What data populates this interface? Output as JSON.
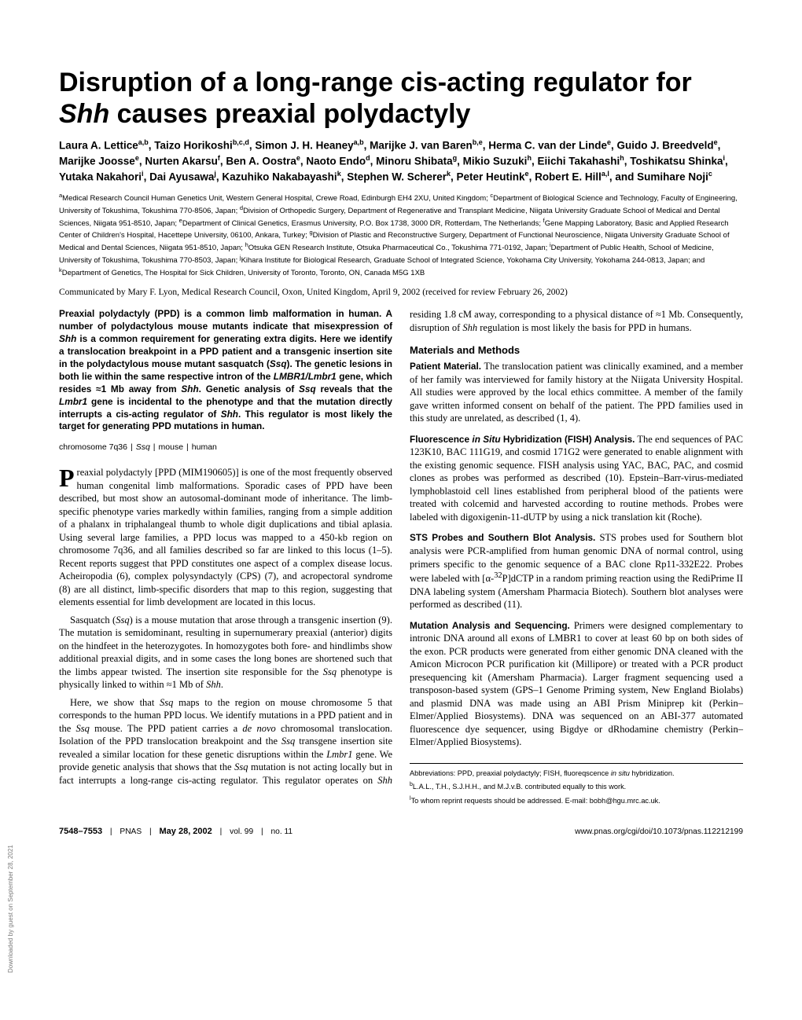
{
  "title": {
    "pre": "Disruption of a long-range cis-acting regulator for ",
    "ital": "Shh",
    "post": " causes preaxial polydactyly"
  },
  "authors_html": "Laura A. Lettice<sup>a,b</sup>, Taizo Horikoshi<sup>b,c,d</sup>, Simon J. H. Heaney<sup>a,b</sup>, Marijke J. van Baren<sup>b,e</sup>, Herma C. van der Linde<sup>e</sup>, Guido J. Breedveld<sup>e</sup>, Marijke Joosse<sup>e</sup>, Nurten Akarsu<sup>f</sup>, Ben A. Oostra<sup>e</sup>, Naoto Endo<sup>d</sup>, Minoru Shibata<sup>g</sup>, Mikio Suzuki<sup>h</sup>, Eiichi Takahashi<sup>h</sup>, Toshikatsu Shinka<sup>i</sup>, Yutaka Nakahori<sup>i</sup>, Dai Ayusawa<sup>j</sup>, Kazuhiko Nakabayashi<sup>k</sup>, Stephen W. Scherer<sup>k</sup>, Peter Heutink<sup>e</sup>, Robert E. Hill<sup>a,l</sup>, and Sumihare Noji<sup>c</sup>",
  "affiliations_html": "<sup>a</sup>Medical Research Council Human Genetics Unit, Western General Hospital, Crewe Road, Edinburgh EH4 2XU, United Kingdom; <sup>c</sup>Department of Biological Science and Technology, Faculty of Engineering, University of Tokushima, Tokushima 770-8506, Japan; <sup>d</sup>Division of Orthopedic Surgery, Department of Regenerative and Transplant Medicine, Niigata University Graduate School of Medical and Dental Sciences, Niigata 951-8510, Japan; <sup>e</sup>Department of Clinical Genetics, Erasmus University, P.O. Box 1738, 3000 DR, Rotterdam, The Netherlands; <sup>f</sup>Gene Mapping Laboratory, Basic and Applied Research Center of Children's Hospital, Hacettepe University, 06100, Ankara, Turkey; <sup>g</sup>Division of Plastic and Reconstructive Surgery, Department of Functional Neuroscience, Niigata University Graduate School of Medical and Dental Sciences, Niigata 951-8510, Japan; <sup>h</sup>Otsuka GEN Research Institute, Otsuka Pharmaceutical Co., Tokushima 771-0192, Japan; <sup>i</sup>Department of Public Health, School of Medicine, University of Tokushima, Tokushima 770-8503, Japan; <sup>j</sup>Kihara Institute for Biological Research, Graduate School of Integrated Science, Yokohama City University, Yokohama 244-0813, Japan; and <sup>k</sup>Department of Genetics, The Hospital for Sick Children, University of Toronto, Toronto, ON, Canada M5G 1XB",
  "communicated": "Communicated by Mary F. Lyon, Medical Research Council, Oxon, United Kingdom, April 9, 2002 (received for review February 26, 2002)",
  "abstract_html": "Preaxial polydactyly (PPD) is a common limb malformation in human. A number of polydactylous mouse mutants indicate that misexpression of <span class='ital'>Shh</span> is a common requirement for generating extra digits. Here we identify a translocation breakpoint in a PPD patient and a transgenic insertion site in the polydactylous mouse mutant sasquatch (<span class='ital'>Ssq</span>). The genetic lesions in both lie within the same respective intron of the <span class='ital'>LMBR1/Lmbr1</span> gene, which resides ≈1 Mb away from <span class='ital'>Shh</span>. Genetic analysis of <span class='ital'>Ssq</span> reveals that the <span class='ital'>Lmbr1</span> gene is incidental to the phenotype and that the mutation directly interrupts a cis-acting regulator of <span class='ital'>Shh</span>. This regulator is most likely the target for generating PPD mutations in human.",
  "keywords": [
    "chromosome 7q36",
    "Ssq",
    "mouse",
    "human"
  ],
  "keyword_separator": "|",
  "intro": {
    "dropcap": "P",
    "p1_html": "reaxial polydactyly [PPD (MIM190605)] is one of the most frequently observed human congenital limb malformations. Sporadic cases of PPD have been described, but most show an autosomal-dominant mode of inheritance. The limb-specific phenotype varies markedly within families, ranging from a simple addition of a phalanx in triphalangeal thumb to whole digit duplications and tibial aplasia. Using several large families, a PPD locus was mapped to a 450-kb region on chromosome 7q36, and all families described so far are linked to this locus (1–5). Recent reports suggest that PPD constitutes one aspect of a complex disease locus. Acheiropodia (6), complex polysyndactyly (CPS) (7), and acropectoral syndrome (8) are all distinct, limb-specific disorders that map to this region, suggesting that elements essential for limb development are located in this locus.",
    "p2_html": "Sasquatch (<i>Ssq</i>) is a mouse mutation that arose through a transgenic insertion (9). The mutation is semidominant, resulting in supernumerary preaxial (anterior) digits on the hindfeet in the heterozygotes. In homozygotes both fore- and hindlimbs show additional preaxial digits, and in some cases the long bones are shortened such that the limbs appear twisted. The insertion site responsible for the <i>Ssq</i> phenotype is physically linked to within ≈1 Mb of <i>Shh</i>.",
    "p3_html": "Here, we show that <i>Ssq</i> maps to the region on mouse chromosome 5 that corresponds to the human PPD locus. We identify mutations in a PPD patient and in the <i>Ssq</i> mouse. The PPD patient carries a <i>de novo</i> chromosomal translocation. Isolation of the PPD translocation breakpoint and the <i>Ssq</i> transgene insertion site revealed a similar location for these genetic disruptions within the <i>Lmbr1</i> gene. We provide genetic analysis that shows that the <i>Ssq</i> mutation is not acting locally but in fact interrupts a long-range cis-acting regulator. This regulator operates on <i>Shh</i> residing 1.8 cM away, corresponding to a physical distance of ≈1 Mb. Consequently, disruption of <i>Shh</i> regulation is most likely the basis for PPD in humans."
  },
  "methods": {
    "heading": "Materials and Methods",
    "sections": [
      {
        "head": "Patient Material.",
        "body_html": "The translocation patient was clinically examined, and a member of her family was interviewed for family history at the Niigata University Hospital. All studies were approved by the local ethics committee. A member of the family gave written informed consent on behalf of the patient. The PPD families used in this study are unrelated, as described (1, 4)."
      },
      {
        "head": "Fluorescence <i>in Situ</i> Hybridization (FISH) Analysis.",
        "body_html": "The end sequences of PAC 123K10, BAC 111G19, and cosmid 171G2 were generated to enable alignment with the existing genomic sequence. FISH analysis using YAC, BAC, PAC, and cosmid clones as probes was performed as described (10). Epstein–Barr-virus-mediated lymphoblastoid cell lines established from peripheral blood of the patients were treated with colcemid and harvested according to routine methods. Probes were labeled with digoxigenin-11-dUTP by using a nick translation kit (Roche)."
      },
      {
        "head": "STS Probes and Southern Blot Analysis.",
        "body_html": "STS probes used for Southern blot analysis were PCR-amplified from human genomic DNA of normal control, using primers specific to the genomic sequence of a BAC clone Rp11-332E22. Probes were labeled with [α-<sup>32</sup>P]dCTP in a random priming reaction using the RediPrime II DNA labeling system (Amersham Pharmacia Biotech). Southern blot analyses were performed as described (11)."
      },
      {
        "head": "Mutation Analysis and Sequencing.",
        "body_html": "Primers were designed complementary to intronic DNA around all exons of LMBR1 to cover at least 60 bp on both sides of the exon. PCR products were generated from either genomic DNA cleaned with the Amicon Microcon PCR purification kit (Millipore) or treated with a PCR product presequencing kit (Amersham Pharmacia). Larger fragment sequencing used a transposon-based system (GPS–1 Genome Priming system, New England Biolabs) and plasmid DNA was made using an ABI Prism Miniprep kit (Perkin–Elmer/Applied Biosystems). DNA was sequenced on an ABI-377 automated fluorescence dye sequencer, using Bigdye or dRhodamine chemistry (Perkin–Elmer/Applied Biosystems)."
      }
    ]
  },
  "footnotes": [
    "Abbreviations: PPD, preaxial polydactyly; FISH, fluoreqscence <i>in situ</i> hybridization.",
    "<sup>b</sup>L.A.L., T.H., S.J.H.H., and M.J.v.B. contributed equally to this work.",
    "<sup>l</sup>To whom reprint requests should be addressed. E-mail: bobh@hgu.mrc.ac.uk."
  ],
  "footer": {
    "left_pages": "7548–7553",
    "left_journal": "PNAS",
    "left_date": "May 28, 2002",
    "left_vol": "vol. 99",
    "left_no": "no. 11",
    "right": "www.pnas.org/cgi/doi/10.1073/pnas.112212199"
  },
  "side_note": "Downloaded by guest on September 28, 2021"
}
